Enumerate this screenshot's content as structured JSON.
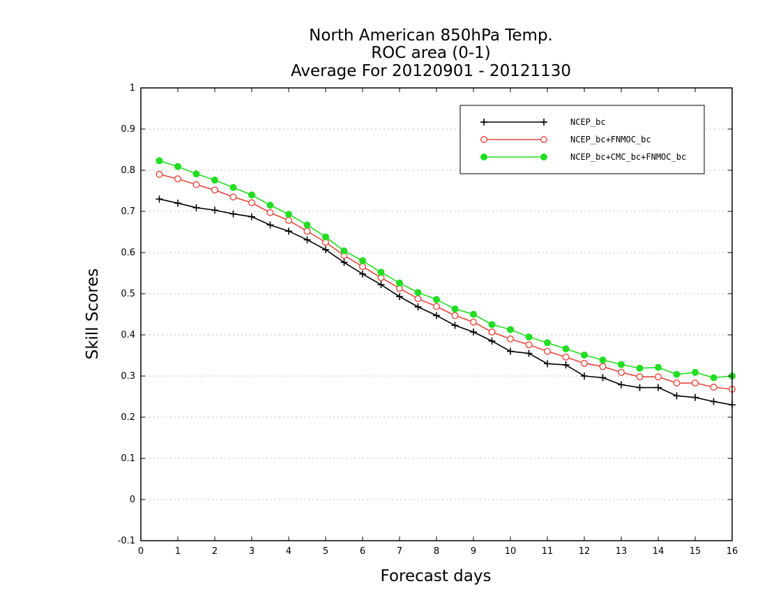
{
  "chart_data": {
    "type": "line",
    "title": [
      "North American 850hPa Temp.",
      "ROC area (0-1)",
      "Average For 20120901 - 20121130"
    ],
    "xlabel": "Forecast days",
    "ylabel": "Skill Scores",
    "xlim": [
      0,
      16
    ],
    "ylim": [
      -0.1,
      1
    ],
    "xticks": [
      0,
      1,
      2,
      3,
      4,
      5,
      6,
      7,
      8,
      9,
      10,
      11,
      12,
      13,
      14,
      15,
      16
    ],
    "yticks": [
      -0.1,
      0,
      0.1,
      0.2,
      0.3,
      0.4,
      0.5,
      0.6,
      0.7,
      0.8,
      0.9,
      1
    ],
    "ytick_labels": [
      "-0.1",
      "0",
      "0.1",
      "0.2",
      "0.3",
      "0.4",
      "0.5",
      "0.6",
      "0.7",
      "0.8",
      "0.9",
      "1"
    ],
    "grid": true,
    "legend_position": "top-right",
    "x": [
      0.5,
      1,
      1.5,
      2,
      2.5,
      3,
      3.5,
      4,
      4.5,
      5,
      5.5,
      6,
      6.5,
      7,
      7.5,
      8,
      8.5,
      9,
      9.5,
      10,
      10.5,
      11,
      11.5,
      12,
      12.5,
      13,
      13.5,
      14,
      14.5,
      15,
      15.5,
      16
    ],
    "series": [
      {
        "name": "NCEP_bc",
        "color": "#000000",
        "marker": "plus",
        "values": [
          0.73,
          0.72,
          0.709,
          0.703,
          0.694,
          0.687,
          0.667,
          0.652,
          0.631,
          0.607,
          0.576,
          0.548,
          0.522,
          0.493,
          0.468,
          0.447,
          0.423,
          0.407,
          0.385,
          0.36,
          0.355,
          0.33,
          0.327,
          0.3,
          0.296,
          0.279,
          0.272,
          0.272,
          0.252,
          0.248,
          0.238,
          0.23
        ]
      },
      {
        "name": "NCEP_bc+FNMOC_bc",
        "color": "#e8473d",
        "marker": "open-circle",
        "values": [
          0.79,
          0.779,
          0.765,
          0.752,
          0.735,
          0.721,
          0.697,
          0.678,
          0.652,
          0.625,
          0.593,
          0.566,
          0.539,
          0.513,
          0.488,
          0.469,
          0.447,
          0.431,
          0.407,
          0.39,
          0.376,
          0.36,
          0.346,
          0.331,
          0.323,
          0.309,
          0.298,
          0.298,
          0.283,
          0.283,
          0.273,
          0.268
        ]
      },
      {
        "name": "NCEP_bc+CMC_bc+FNMOC_bc",
        "color": "#22dd22",
        "marker": "filled-circle",
        "values": [
          0.823,
          0.809,
          0.791,
          0.776,
          0.758,
          0.74,
          0.715,
          0.693,
          0.667,
          0.638,
          0.604,
          0.58,
          0.552,
          0.526,
          0.503,
          0.486,
          0.463,
          0.45,
          0.425,
          0.413,
          0.395,
          0.381,
          0.366,
          0.351,
          0.339,
          0.328,
          0.319,
          0.321,
          0.304,
          0.309,
          0.296,
          0.3
        ]
      }
    ]
  }
}
